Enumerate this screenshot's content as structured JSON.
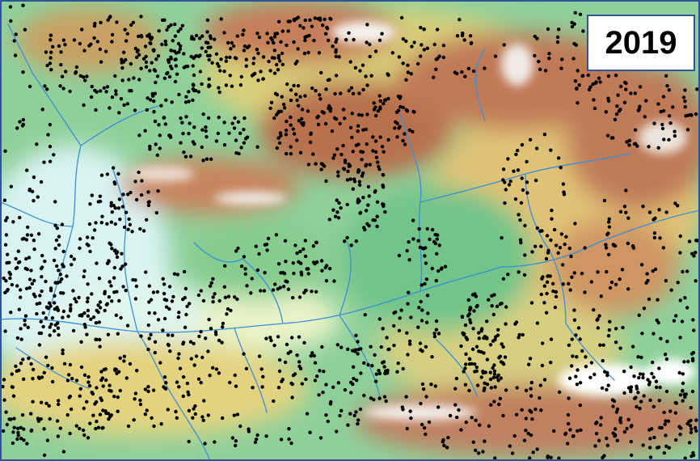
{
  "map": {
    "year": "2019",
    "points": "black",
    "colors": {
      "lowland": "#cfeef2",
      "low": "#7cc98f",
      "mid": "#d9d57a",
      "high": "#c9885b",
      "peak": "#ffffff",
      "rivers": "#3b8fd6",
      "frame": "#2f5597",
      "points": "#000000"
    }
  }
}
